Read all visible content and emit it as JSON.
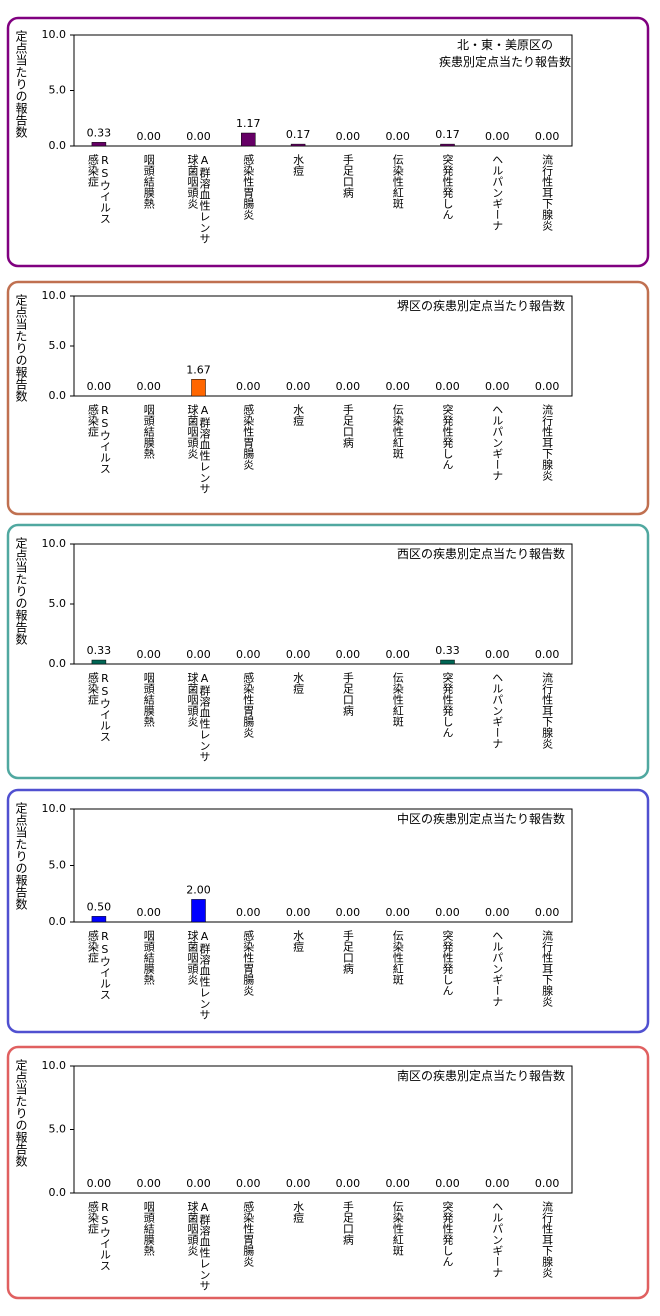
{
  "chart_data": [
    {
      "type": "bar",
      "title": [
        "北・東・美原区の",
        "疾患別定点当たり報告数"
      ],
      "ylabel": "定点当たりの報告数",
      "categories": [
        [
          "RSウイルス",
          "感染症"
        ],
        [
          "咽頭結膜熱"
        ],
        [
          "A群溶血性レンサ",
          "球菌咽頭炎"
        ],
        [
          "感染性胃腸炎"
        ],
        [
          "水痘"
        ],
        [
          "手足口病"
        ],
        [
          "伝染性紅斑"
        ],
        [
          "突発性発しん"
        ],
        [
          "ヘルパンギーナ"
        ],
        [
          "流行性耳下腺炎"
        ]
      ],
      "values": [
        0.33,
        0,
        0,
        1.17,
        0.17,
        0,
        0,
        0.17,
        0,
        0
      ],
      "value_labels": [
        "0.33",
        "0.00",
        "0.00",
        "1.17",
        "0.17",
        "0.00",
        "0.00",
        "0.17",
        "0.00",
        "0.00"
      ],
      "color": "#660066",
      "frame_color": "#800080",
      "ylim": [
        0,
        10
      ],
      "yticks": [
        {
          "value": 0,
          "label": "0.0"
        },
        {
          "value": 5,
          "label": "5.0"
        },
        {
          "value": 10,
          "label": "10.0"
        }
      ]
    },
    {
      "type": "bar",
      "title": [
        "堺区の疾患別定点当たり報告数"
      ],
      "ylabel": "定点当たりの報告数",
      "categories": [
        [
          "RSウイルス",
          "感染症"
        ],
        [
          "咽頭結膜熱"
        ],
        [
          "A群溶血性レンサ",
          "球菌咽頭炎"
        ],
        [
          "感染性胃腸炎"
        ],
        [
          "水痘"
        ],
        [
          "手足口病"
        ],
        [
          "伝染性紅斑"
        ],
        [
          "突発性発しん"
        ],
        [
          "ヘルパンギーナ"
        ],
        [
          "流行性耳下腺炎"
        ]
      ],
      "values": [
        0,
        0,
        1.67,
        0,
        0,
        0,
        0,
        0,
        0,
        0
      ],
      "value_labels": [
        "0.00",
        "0.00",
        "1.67",
        "0.00",
        "0.00",
        "0.00",
        "0.00",
        "0.00",
        "0.00",
        "0.00"
      ],
      "color": "#ff6600",
      "frame_color": "#c07050",
      "ylim": [
        0,
        10
      ],
      "yticks": [
        {
          "value": 0,
          "label": "0.0"
        },
        {
          "value": 5,
          "label": "5.0"
        },
        {
          "value": 10,
          "label": "10.0"
        }
      ]
    },
    {
      "type": "bar",
      "title": [
        "西区の疾患別定点当たり報告数"
      ],
      "ylabel": "定点当たりの報告数",
      "categories": [
        [
          "RSウイルス",
          "感染症"
        ],
        [
          "咽頭結膜熱"
        ],
        [
          "A群溶血性レンサ",
          "球菌咽頭炎"
        ],
        [
          "感染性胃腸炎"
        ],
        [
          "水痘"
        ],
        [
          "手足口病"
        ],
        [
          "伝染性紅斑"
        ],
        [
          "突発性発しん"
        ],
        [
          "ヘルパンギーナ"
        ],
        [
          "流行性耳下腺炎"
        ]
      ],
      "values": [
        0.33,
        0,
        0,
        0,
        0,
        0,
        0,
        0.33,
        0,
        0
      ],
      "value_labels": [
        "0.33",
        "0.00",
        "0.00",
        "0.00",
        "0.00",
        "0.00",
        "0.00",
        "0.33",
        "0.00",
        "0.00"
      ],
      "color": "#006655",
      "frame_color": "#50a8a0",
      "ylim": [
        0,
        10
      ],
      "yticks": [
        {
          "value": 0,
          "label": "0.0"
        },
        {
          "value": 5,
          "label": "5.0"
        },
        {
          "value": 10,
          "label": "10.0"
        }
      ]
    },
    {
      "type": "bar",
      "title": [
        "中区の疾患別定点当たり報告数"
      ],
      "ylabel": "定点当たりの報告数",
      "categories": [
        [
          "RSウイルス",
          "感染症"
        ],
        [
          "咽頭結膜熱"
        ],
        [
          "A群溶血性レンサ",
          "球菌咽頭炎"
        ],
        [
          "感染性胃腸炎"
        ],
        [
          "水痘"
        ],
        [
          "手足口病"
        ],
        [
          "伝染性紅斑"
        ],
        [
          "突発性発しん"
        ],
        [
          "ヘルパンギーナ"
        ],
        [
          "流行性耳下腺炎"
        ]
      ],
      "values": [
        0.5,
        0,
        2,
        0,
        0,
        0,
        0,
        0,
        0,
        0
      ],
      "value_labels": [
        "0.50",
        "0.00",
        "2.00",
        "0.00",
        "0.00",
        "0.00",
        "0.00",
        "0.00",
        "0.00",
        "0.00"
      ],
      "color": "#0000ff",
      "frame_color": "#5050d0",
      "ylim": [
        0,
        10
      ],
      "yticks": [
        {
          "value": 0,
          "label": "0.0"
        },
        {
          "value": 5,
          "label": "5.0"
        },
        {
          "value": 10,
          "label": "10.0"
        }
      ]
    },
    {
      "type": "bar",
      "title": [
        "南区の疾患別定点当たり報告数"
      ],
      "ylabel": "定点当たりの報告数",
      "categories": [
        [
          "RSウイルス",
          "感染症"
        ],
        [
          "咽頭結膜熱"
        ],
        [
          "A群溶血性レンサ",
          "球菌咽頭炎"
        ],
        [
          "感染性胃腸炎"
        ],
        [
          "水痘"
        ],
        [
          "手足口病"
        ],
        [
          "伝染性紅斑"
        ],
        [
          "突発性発しん"
        ],
        [
          "ヘルパンギーナ"
        ],
        [
          "流行性耳下腺炎"
        ]
      ],
      "values": [
        0,
        0,
        0,
        0,
        0,
        0,
        0,
        0,
        0,
        0
      ],
      "value_labels": [
        "0.00",
        "0.00",
        "0.00",
        "0.00",
        "0.00",
        "0.00",
        "0.00",
        "0.00",
        "0.00",
        "0.00"
      ],
      "color": "#ff0000",
      "frame_color": "#e06060",
      "ylim": [
        0,
        10
      ],
      "yticks": [
        {
          "value": 0,
          "label": "0.0"
        },
        {
          "value": 5,
          "label": "5.0"
        },
        {
          "value": 10,
          "label": "10.0"
        }
      ]
    }
  ]
}
